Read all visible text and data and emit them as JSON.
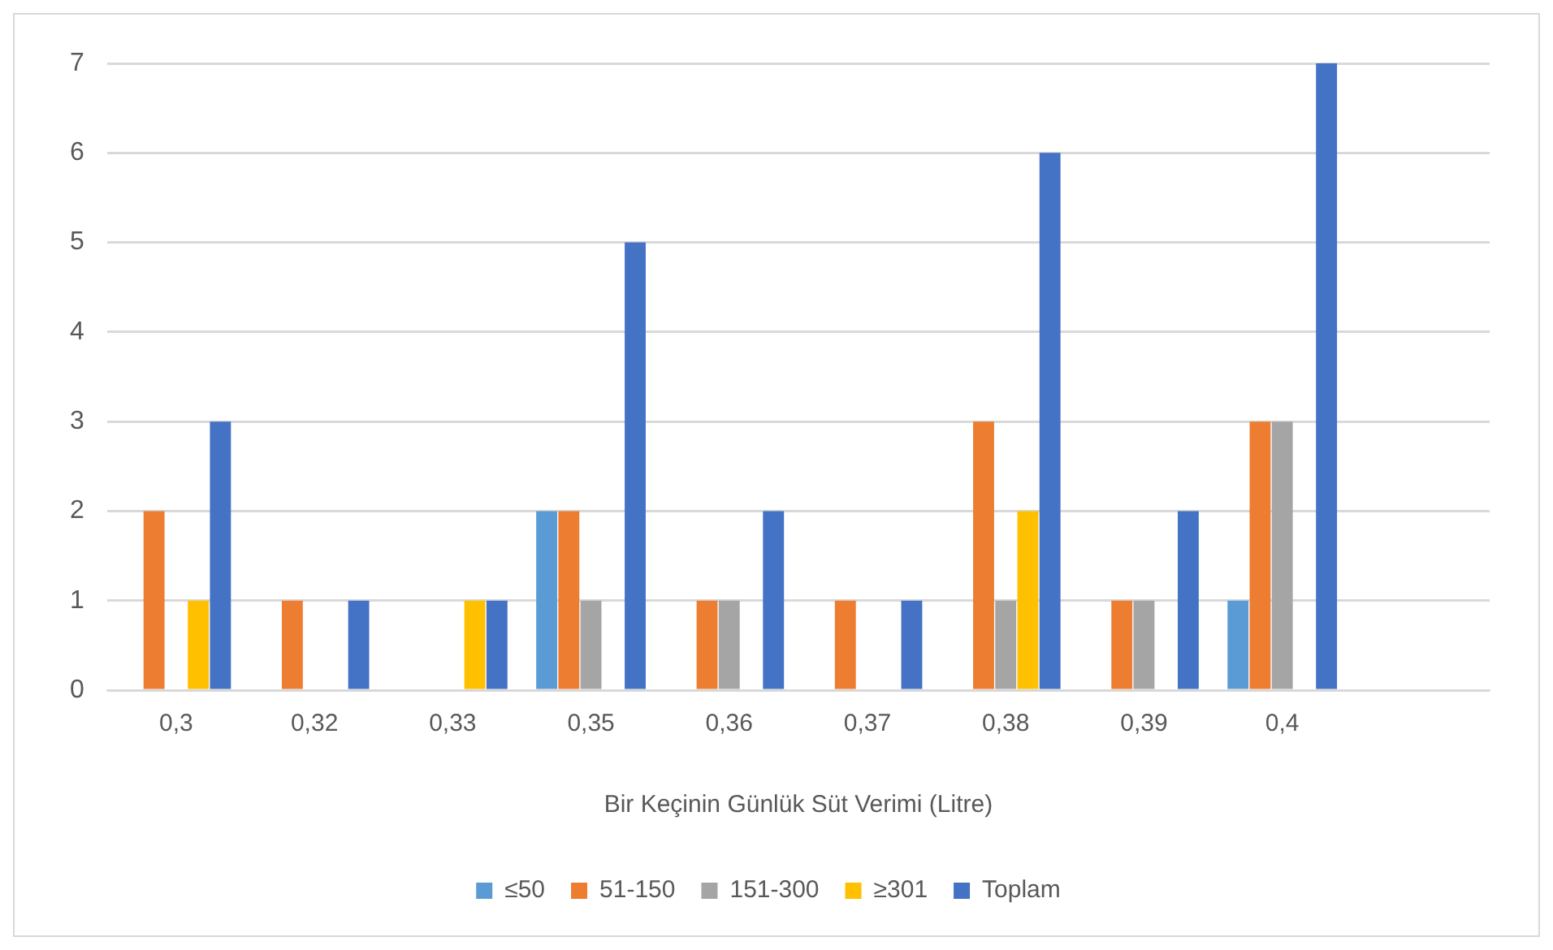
{
  "chart_data": {
    "type": "bar",
    "xlabel": "Bir Keçinin Günlük Süt Verimi (Litre)",
    "categories": [
      "0,3",
      "0,32",
      "0,33",
      "0,35",
      "0,36",
      "0,37",
      "0,38",
      "0,39",
      "0,4",
      null
    ],
    "series": [
      {
        "name": "≤50",
        "color": "#5b9bd5",
        "values": [
          0,
          0,
          0,
          2,
          0,
          0,
          0,
          0,
          1,
          null
        ]
      },
      {
        "name": "51-150",
        "color": "#ed7d31",
        "values": [
          2,
          1,
          0,
          2,
          1,
          1,
          3,
          1,
          3,
          null
        ]
      },
      {
        "name": "151-300",
        "color": "#a5a5a5",
        "values": [
          0,
          0,
          0,
          1,
          1,
          0,
          1,
          1,
          3,
          null
        ]
      },
      {
        "name": "≥301",
        "color": "#ffc000",
        "values": [
          1,
          0,
          1,
          0,
          0,
          0,
          2,
          0,
          0,
          null
        ]
      },
      {
        "name": "Toplam",
        "color": "#4472c4",
        "values": [
          3,
          1,
          1,
          5,
          2,
          1,
          6,
          2,
          7,
          null
        ]
      }
    ],
    "ylim": [
      0,
      7
    ],
    "yticks": [
      0,
      1,
      2,
      3,
      4,
      5,
      6,
      7
    ],
    "grid": "y",
    "legend": "bottom"
  }
}
